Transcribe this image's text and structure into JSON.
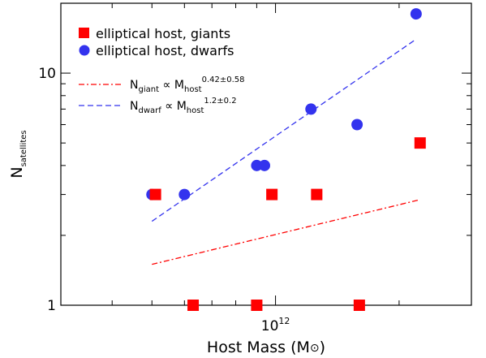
{
  "chart_data": {
    "type": "scatter",
    "xlabel": "Host Mass (M",
    "xlabel_symbol": "⊙",
    "xlabel_close": ")",
    "ylabel": "N",
    "ylabel_sub": "satellites",
    "x_scale": "log",
    "y_scale": "log",
    "xlim": [
      300000000000.0,
      3000000000000.0
    ],
    "ylim": [
      1,
      20
    ],
    "x_ticks": [
      {
        "value": 1000000000000.0,
        "base": "10",
        "exp": "12"
      }
    ],
    "y_ticks": [
      {
        "value": 1,
        "label": "1"
      },
      {
        "value": 10,
        "label": "10"
      }
    ],
    "grid": false,
    "legend_position": "top-left",
    "series": [
      {
        "name": "elliptical host, giants",
        "marker": "square",
        "color": "#ff0000",
        "points": [
          {
            "x": 510000000000.0,
            "y": 3.0
          },
          {
            "x": 630000000000.0,
            "y": 1.0
          },
          {
            "x": 900000000000.0,
            "y": 1.0
          },
          {
            "x": 980000000000.0,
            "y": 3.0
          },
          {
            "x": 1260000000000.0,
            "y": 3.0
          },
          {
            "x": 1600000000000.0,
            "y": 1.0
          },
          {
            "x": 2250000000000.0,
            "y": 5.0
          }
        ]
      },
      {
        "name": "elliptical host, dwarfs",
        "marker": "circle",
        "color": "#3333ee",
        "points": [
          {
            "x": 500000000000.0,
            "y": 3.0
          },
          {
            "x": 600000000000.0,
            "y": 3.0
          },
          {
            "x": 900000000000.0,
            "y": 4.0
          },
          {
            "x": 940000000000.0,
            "y": 4.0
          },
          {
            "x": 1220000000000.0,
            "y": 7.0
          },
          {
            "x": 1580000000000.0,
            "y": 6.0
          },
          {
            "x": 2200000000000.0,
            "y": 18.0
          }
        ]
      }
    ],
    "fits": [
      {
        "line_style": "dash-dot",
        "color": "#ff0000",
        "label_n": "N",
        "label_n_sub": "giant",
        "label_prop": "∝",
        "label_m": "M",
        "label_m_sub": "host",
        "label_exp": "0.42±0.58",
        "x": [
          500000000000.0,
          2250000000000.0
        ],
        "y": [
          1.5,
          2.85
        ]
      },
      {
        "line_style": "dashed",
        "color": "#3333ee",
        "label_n": "N",
        "label_n_sub": "dwarf",
        "label_prop": "∝",
        "label_m": "M",
        "label_m_sub": "host",
        "label_exp": "1.2±0.2",
        "x": [
          500000000000.0,
          2200000000000.0
        ],
        "y": [
          2.3,
          14.0
        ]
      }
    ]
  }
}
